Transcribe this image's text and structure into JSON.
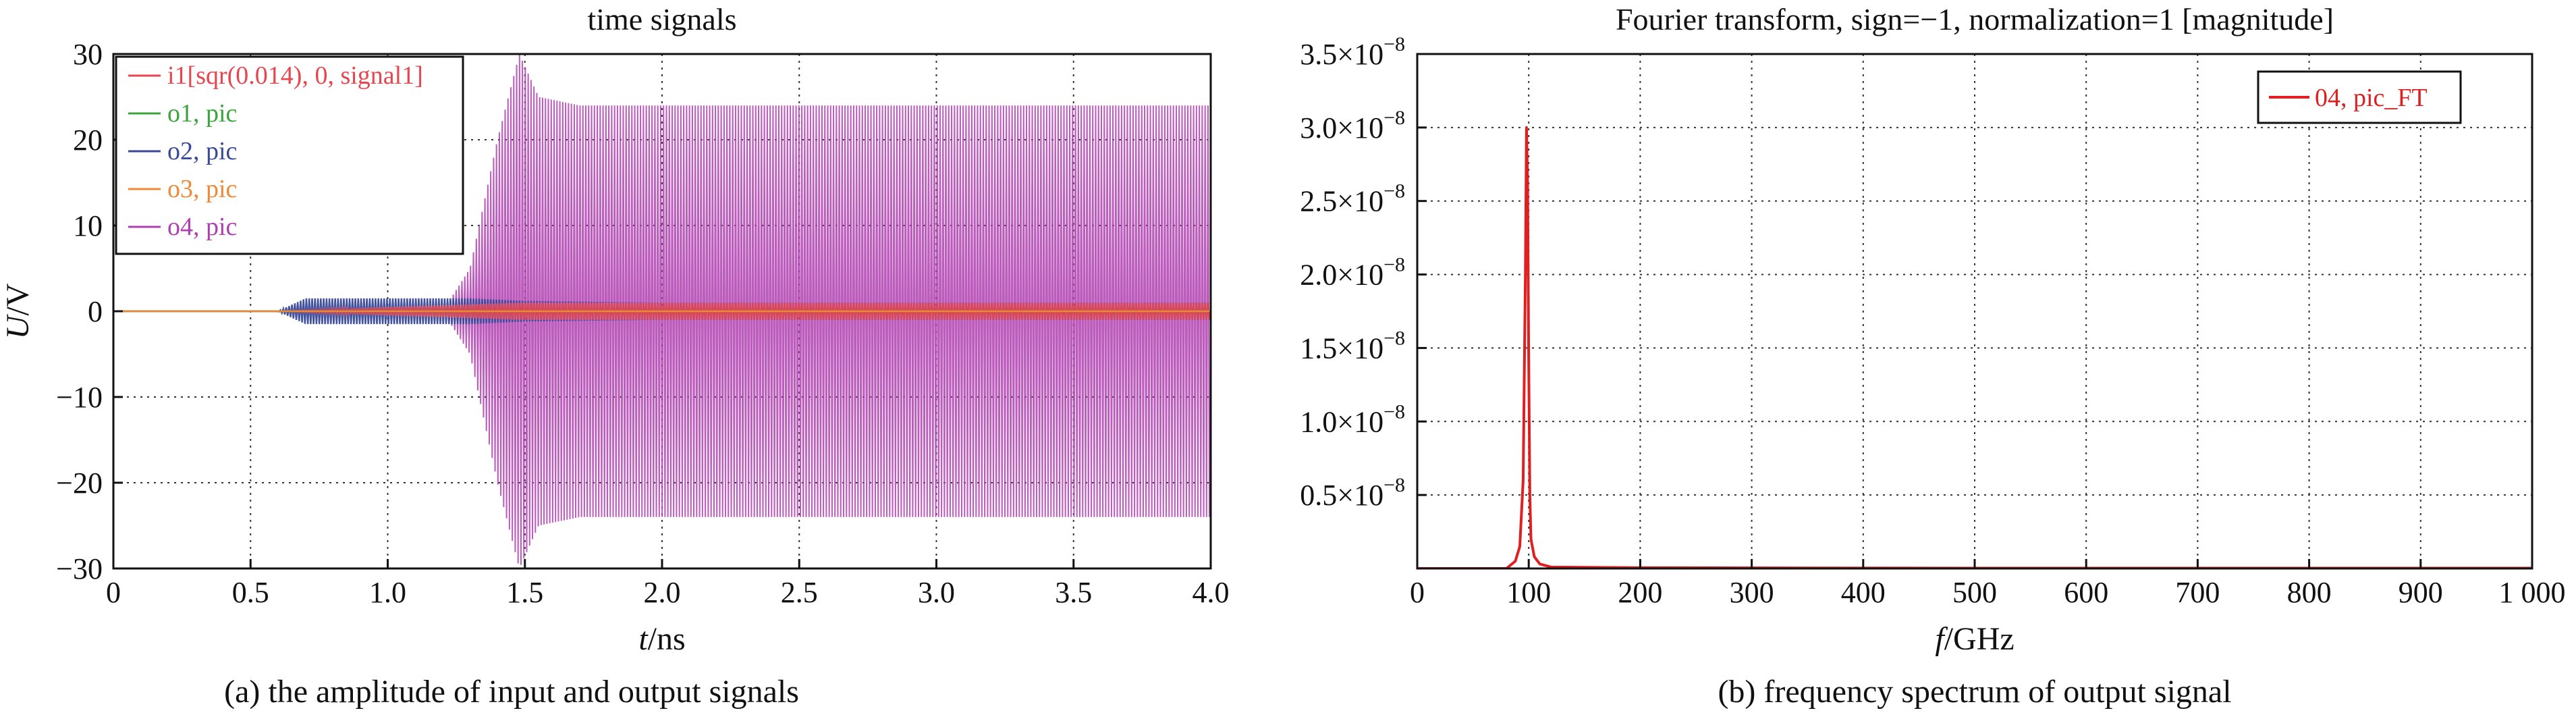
{
  "chart_data": [
    {
      "type": "line",
      "title": "time signals",
      "xlabel_italic": "t",
      "xlabel_unit": "/ns",
      "ylabel_italic": "U",
      "ylabel_unit": "/V",
      "caption": "(a) the amplitude of input and output signals",
      "xlim": [
        0,
        4
      ],
      "ylim": [
        -30,
        30
      ],
      "xticks": [
        0,
        0.5,
        1,
        1.5,
        2,
        2.5,
        3,
        3.5,
        4
      ],
      "xtick_labels": [
        "0",
        "0.5",
        "1.0",
        "1.5",
        "2.0",
        "2.5",
        "3.0",
        "3.5",
        "4.0"
      ],
      "yticks": [
        -30,
        -20,
        -10,
        0,
        10,
        20,
        30
      ],
      "ytick_labels": [
        "−30",
        "−20",
        "−10",
        "0",
        "10",
        "20",
        "30"
      ],
      "grid": true,
      "legend_position": "top-left",
      "series": [
        {
          "name": "i1[sqr(0.014), 0, signal1]",
          "color": "#e8464f",
          "x": [
            0,
            0.6,
            1.0,
            1.5,
            2.0,
            2.5,
            3.0,
            3.5,
            4.0
          ],
          "y": [
            0,
            0,
            0.5,
            1,
            1,
            1,
            1,
            1,
            1
          ]
        },
        {
          "name": "o1, pic",
          "color": "#3aa53a",
          "x": [
            0,
            1,
            2,
            3,
            4
          ],
          "y": [
            0,
            0,
            0,
            0,
            0
          ]
        },
        {
          "name": "o2, pic",
          "color": "#3a4a9a",
          "x": [
            0,
            0.6,
            0.7,
            1.3,
            1.5,
            2.0,
            3.0,
            4.0
          ],
          "y": [
            0,
            0,
            1.5,
            1.5,
            1.2,
            1.0,
            1.0,
            1.0
          ]
        },
        {
          "name": "o3, pic",
          "color": "#f0883a",
          "x": [
            0,
            1,
            2,
            3,
            4
          ],
          "y": [
            0,
            0,
            0,
            0,
            0
          ]
        },
        {
          "name": "o4, pic",
          "color": "#b040b0",
          "x": [
            0,
            1.2,
            1.3,
            1.4,
            1.48,
            1.55,
            1.7,
            2.0,
            3.0,
            4.0
          ],
          "y": [
            0,
            0,
            5,
            20,
            30,
            25,
            24,
            24,
            24,
            24
          ]
        }
      ]
    },
    {
      "type": "line",
      "title": "Fourier transform, sign=−1, normalization=1 [magnitude]",
      "xlabel_italic": "f",
      "xlabel_unit": "/GHz",
      "caption": "(b) frequency spectrum of output signal",
      "xlim": [
        0,
        1000
      ],
      "ylim": [
        0,
        3.5e-08
      ],
      "xticks": [
        0,
        100,
        200,
        300,
        400,
        500,
        600,
        700,
        800,
        900,
        1000
      ],
      "xtick_labels": [
        "0",
        "100",
        "200",
        "300",
        "400",
        "500",
        "600",
        "700",
        "800",
        "900",
        "1 000"
      ],
      "yticks": [
        5e-09,
        1e-08,
        1.5e-08,
        2e-08,
        2.5e-08,
        3e-08,
        3.5e-08
      ],
      "ytick_mantissas": [
        "0.5",
        "1.0",
        "1.5",
        "2.0",
        "2.5",
        "3.0",
        "3.5"
      ],
      "ytick_times": "×10",
      "ytick_exponent": "−8",
      "grid": true,
      "legend_position": "top-right",
      "series": [
        {
          "name": "04, pic_FT",
          "color": "#e02020",
          "x": [
            0,
            80,
            88,
            92,
            95,
            97,
            98,
            99,
            100,
            101,
            102,
            105,
            110,
            120,
            200,
            400,
            600,
            800,
            1000
          ],
          "y": [
            0,
            0,
            5e-10,
            1.5e-09,
            6e-09,
            2e-08,
            3e-08,
            2.6e-08,
            1.4e-08,
            5e-09,
            2e-09,
            8e-10,
            3e-10,
            1e-10,
            5e-11,
            3e-11,
            2e-11,
            2e-11,
            2e-11
          ]
        }
      ]
    }
  ]
}
